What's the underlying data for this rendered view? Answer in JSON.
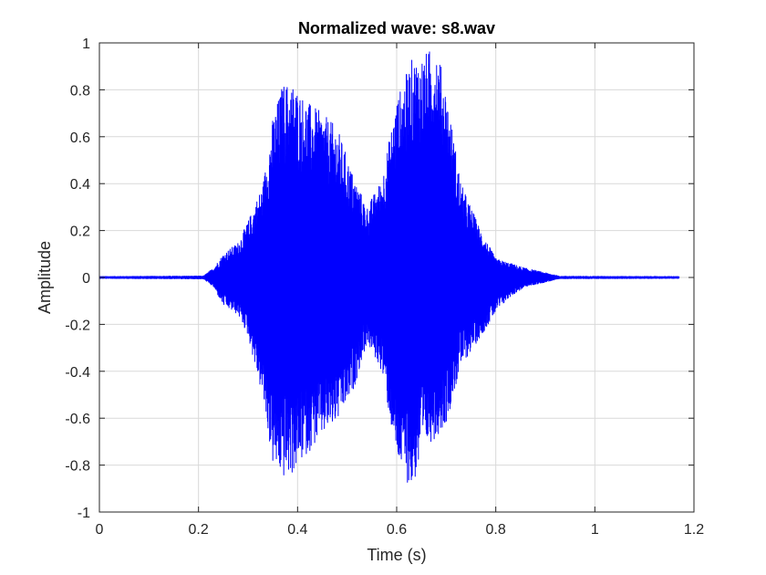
{
  "chart_data": {
    "type": "line",
    "title": "Normalized wave: s8.wav",
    "xlabel": "Time (s)",
    "ylabel": "Amplitude",
    "xlim": [
      0,
      1.2
    ],
    "ylim": [
      -1,
      1
    ],
    "x_ticks": [
      0,
      0.2,
      0.4,
      0.6,
      0.8,
      1,
      1.2
    ],
    "x_tick_labels": [
      "0",
      "0.2",
      "0.4",
      "0.6",
      "0.8",
      "1",
      "1.2"
    ],
    "y_ticks": [
      -1,
      -0.8,
      -0.6,
      -0.4,
      -0.2,
      0,
      0.2,
      0.4,
      0.6,
      0.8,
      1
    ],
    "y_tick_labels": [
      "-1",
      "-0.8",
      "-0.6",
      "-0.4",
      "-0.2",
      "0",
      "0.2",
      "0.4",
      "0.6",
      "0.8",
      "1"
    ],
    "grid": true,
    "box": true,
    "colors": {
      "series": "#0000ff",
      "grid": "#d9d9d9",
      "axes": "#262626",
      "background": "#ffffff"
    },
    "series": [
      {
        "style": "solid",
        "duration_s": 1.17,
        "envelope": {
          "t": [
            0,
            0.21,
            0.23,
            0.25,
            0.28,
            0.3,
            0.33,
            0.35,
            0.37,
            0.39,
            0.42,
            0.45,
            0.48,
            0.51,
            0.54,
            0.57,
            0.6,
            0.63,
            0.66,
            0.68,
            0.7,
            0.73,
            0.77,
            0.8,
            0.83,
            0.86,
            0.9,
            0.93,
            1.17
          ],
          "upper": [
            0.004,
            0.006,
            0.04,
            0.1,
            0.15,
            0.24,
            0.4,
            0.68,
            0.83,
            0.83,
            0.75,
            0.7,
            0.64,
            0.45,
            0.3,
            0.42,
            0.76,
            0.93,
            0.96,
            1.0,
            0.8,
            0.4,
            0.2,
            0.08,
            0.06,
            0.04,
            0.02,
            0.005,
            0.004
          ],
          "lower": [
            -0.004,
            -0.006,
            -0.04,
            -0.12,
            -0.16,
            -0.25,
            -0.52,
            -0.8,
            -0.86,
            -0.84,
            -0.75,
            -0.68,
            -0.62,
            -0.5,
            -0.28,
            -0.4,
            -0.78,
            -0.91,
            -0.72,
            -0.68,
            -0.62,
            -0.38,
            -0.25,
            -0.15,
            -0.08,
            -0.04,
            -0.02,
            -0.005,
            -0.004
          ]
        }
      }
    ]
  }
}
